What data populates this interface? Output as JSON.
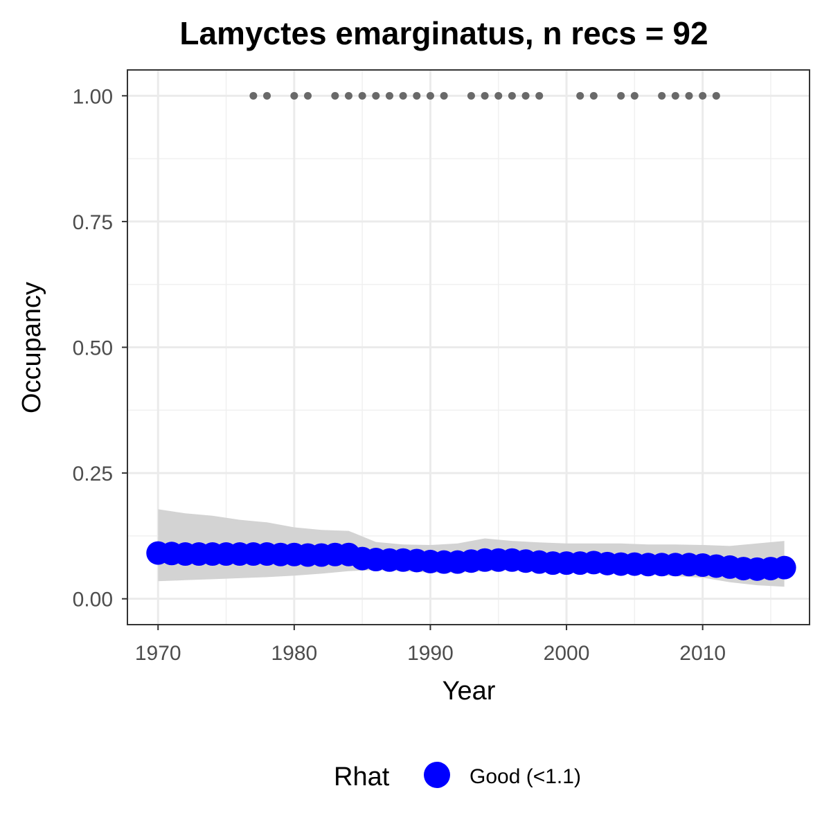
{
  "chart_data": {
    "type": "line",
    "title": "Lamyctes emarginatus, n recs = 92",
    "xlabel": "Year",
    "ylabel": "Occupancy",
    "xlim": [
      1967.8,
      2017.8
    ],
    "ylim": [
      -0.05,
      1.05
    ],
    "x_ticks": [
      1970,
      1980,
      1990,
      2000,
      2010
    ],
    "x_tick_labels": [
      "1970",
      "1980",
      "1990",
      "2000",
      "2010"
    ],
    "y_ticks": [
      0,
      0.25,
      0.5,
      0.75,
      1
    ],
    "y_tick_labels": [
      "0.00",
      "0.25",
      "0.50",
      "0.75",
      "1.00"
    ],
    "grid": true,
    "legend": {
      "position": "bottom",
      "title": "Rhat",
      "entries": [
        {
          "label": "Good (<1.1)",
          "color": "#0000ff"
        }
      ]
    },
    "series": [
      {
        "name": "Good (<1.1)",
        "color": "#0000ff",
        "x": [
          1970,
          1971,
          1972,
          1973,
          1974,
          1975,
          1976,
          1977,
          1978,
          1979,
          1980,
          1981,
          1982,
          1983,
          1984,
          1985,
          1986,
          1987,
          1988,
          1989,
          1990,
          1991,
          1992,
          1993,
          1994,
          1995,
          1996,
          1997,
          1998,
          1999,
          2000,
          2001,
          2002,
          2003,
          2004,
          2005,
          2006,
          2007,
          2008,
          2009,
          2010,
          2011,
          2012,
          2013,
          2014,
          2015,
          2016
        ],
        "y": [
          0.091,
          0.09,
          0.089,
          0.089,
          0.089,
          0.089,
          0.089,
          0.089,
          0.089,
          0.088,
          0.088,
          0.087,
          0.087,
          0.088,
          0.088,
          0.08,
          0.078,
          0.077,
          0.077,
          0.076,
          0.074,
          0.073,
          0.073,
          0.075,
          0.077,
          0.077,
          0.077,
          0.075,
          0.073,
          0.071,
          0.071,
          0.071,
          0.072,
          0.07,
          0.069,
          0.069,
          0.068,
          0.068,
          0.068,
          0.068,
          0.067,
          0.065,
          0.063,
          0.06,
          0.059,
          0.06,
          0.062
        ]
      }
    ],
    "ribbon": {
      "color": "#d3d3d3",
      "x": [
        1970,
        1972,
        1974,
        1976,
        1978,
        1980,
        1982,
        1984,
        1986,
        1988,
        1990,
        1992,
        1994,
        1996,
        1998,
        2000,
        2002,
        2004,
        2006,
        2008,
        2010,
        2012,
        2014,
        2016
      ],
      "lower": [
        0.035,
        0.037,
        0.039,
        0.041,
        0.043,
        0.046,
        0.05,
        0.055,
        0.057,
        0.055,
        0.052,
        0.052,
        0.055,
        0.057,
        0.055,
        0.052,
        0.052,
        0.05,
        0.048,
        0.045,
        0.042,
        0.033,
        0.027,
        0.024
      ],
      "upper": [
        0.178,
        0.17,
        0.165,
        0.157,
        0.152,
        0.142,
        0.137,
        0.135,
        0.113,
        0.108,
        0.107,
        0.11,
        0.12,
        0.115,
        0.112,
        0.11,
        0.11,
        0.11,
        0.108,
        0.108,
        0.107,
        0.105,
        0.11,
        0.115
      ]
    },
    "records": {
      "y": 1.0,
      "color": "#696969",
      "x": [
        1977,
        1978,
        1980,
        1981,
        1983,
        1984,
        1985,
        1986,
        1987,
        1988,
        1989,
        1990,
        1991,
        1993,
        1994,
        1995,
        1996,
        1997,
        1998,
        2001,
        2002,
        2004,
        2005,
        2007,
        2008,
        2009,
        2010,
        2011
      ]
    }
  }
}
